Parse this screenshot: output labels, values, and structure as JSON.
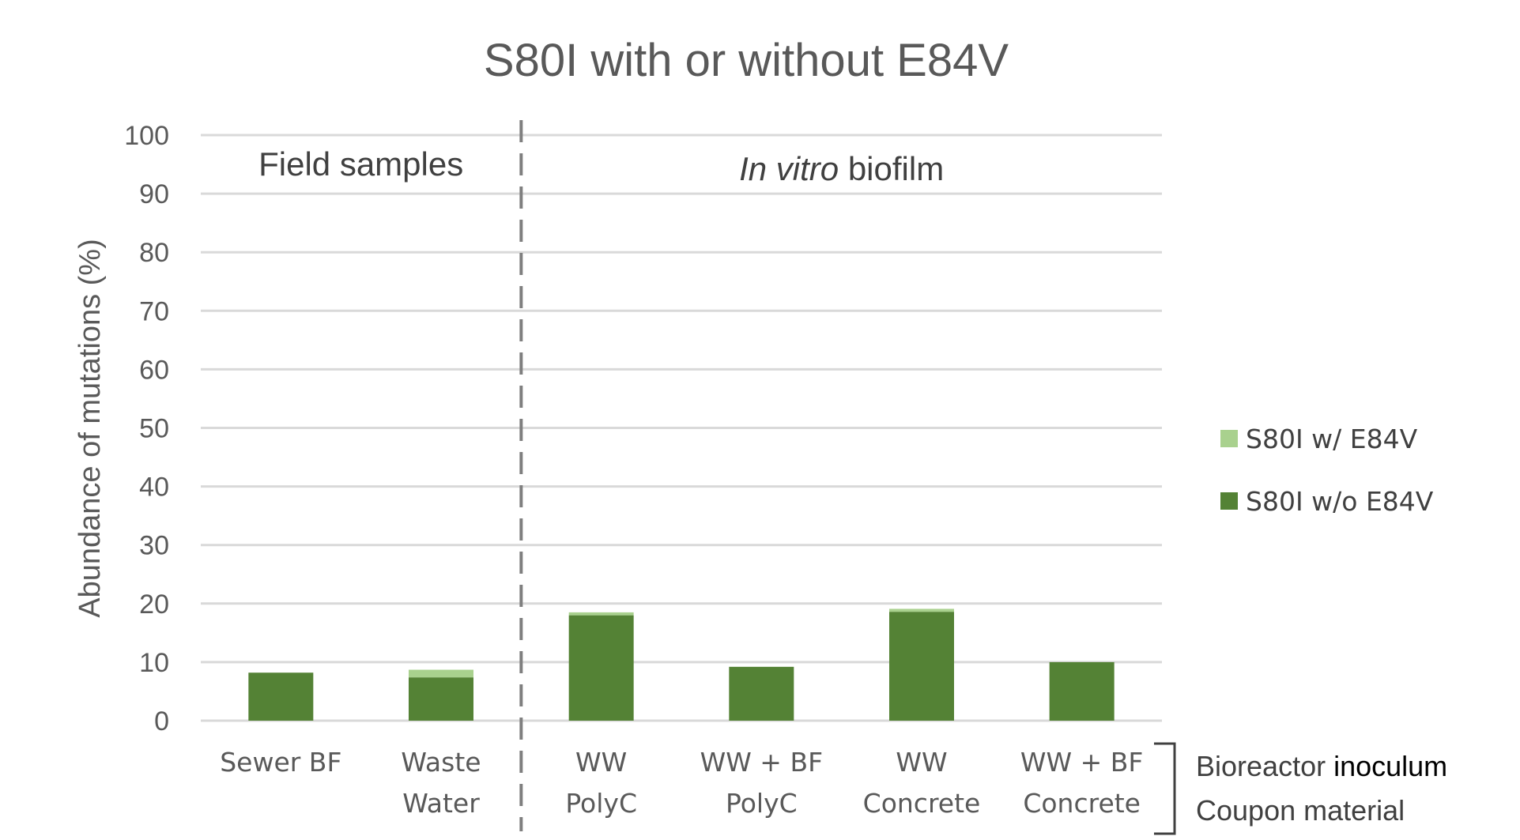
{
  "chart_data": {
    "type": "bar",
    "stacked": true,
    "title": "S80I with or without E84V",
    "ylabel": "Abundance of mutations (%)",
    "xlabel": "",
    "ylim": [
      0,
      100
    ],
    "yticks": [
      0,
      10,
      20,
      30,
      40,
      50,
      60,
      70,
      80,
      90,
      100
    ],
    "grid": true,
    "legend_position": "right",
    "categories": [
      [
        "Sewer BF"
      ],
      [
        "Waste",
        "Water"
      ],
      [
        "WW",
        "PolyC"
      ],
      [
        "WW + BF",
        "PolyC"
      ],
      [
        "WW",
        "Concrete"
      ],
      [
        "WW + BF",
        "Concrete"
      ]
    ],
    "series": [
      {
        "name": "S80I w/o E84V",
        "color": "#548235",
        "values": [
          8.2,
          7.4,
          18.0,
          9.2,
          18.6,
          10.0
        ]
      },
      {
        "name": "S80I w/ E84V",
        "color": "#a9d18e",
        "values": [
          0.0,
          1.3,
          0.5,
          0.0,
          0.5,
          0.0
        ]
      }
    ],
    "legend_order": [
      1,
      0
    ],
    "regions": [
      {
        "label": "Field samples",
        "italic_part": "",
        "categories": [
          0,
          1
        ]
      },
      {
        "label": " biofilm",
        "italic_part": "In vitro",
        "categories": [
          2,
          3,
          4,
          5
        ]
      }
    ],
    "separator_after_category": 1,
    "side_labels": [
      {
        "plain": "Bioreactor ",
        "dark": "inoculum"
      },
      {
        "plain": "Coupon material",
        "dark": ""
      }
    ]
  }
}
